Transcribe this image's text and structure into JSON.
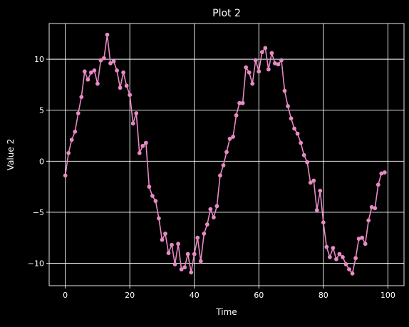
{
  "chart_data": {
    "type": "line",
    "title": "Plot 2",
    "xlabel": "Time",
    "ylabel": "Value 2",
    "xlim": [
      -5,
      105
    ],
    "ylim": [
      -12.2,
      13.5
    ],
    "xticks": [
      0,
      20,
      40,
      60,
      80,
      100
    ],
    "yticks": [
      -10,
      -5,
      0,
      5,
      10
    ],
    "xtick_labels": [
      "0",
      "20",
      "40",
      "60",
      "80",
      "100"
    ],
    "ytick_labels": [
      "−10",
      "−5",
      "0",
      "5",
      "10"
    ],
    "grid": true,
    "colors": {
      "background": "#000000",
      "series": "#e78ac3",
      "grid": "#ffffff",
      "text": "#ffffff"
    },
    "series": [
      {
        "marker": "circle",
        "x": [
          0,
          1,
          2,
          3,
          4,
          5,
          6,
          7,
          8,
          9,
          10,
          11,
          12,
          13,
          14,
          15,
          16,
          17,
          18,
          19,
          20,
          21,
          22,
          23,
          24,
          25,
          26,
          27,
          28,
          29,
          30,
          31,
          32,
          33,
          34,
          35,
          36,
          37,
          38,
          39,
          40,
          41,
          42,
          43,
          44,
          45,
          46,
          47,
          48,
          49,
          50,
          51,
          52,
          53,
          54,
          55,
          56,
          57,
          58,
          59,
          60,
          61,
          62,
          63,
          64,
          65,
          66,
          67,
          68,
          69,
          70,
          71,
          72,
          73,
          74,
          75,
          76,
          77,
          78,
          79,
          80,
          81,
          82,
          83,
          84,
          85,
          86,
          87,
          88,
          89,
          90,
          91,
          92,
          93,
          94,
          95,
          96,
          97,
          98,
          99
        ],
        "values": [
          -1.4,
          0.8,
          2.1,
          2.9,
          4.7,
          6.3,
          8.8,
          8.0,
          8.7,
          8.9,
          7.6,
          9.9,
          10.1,
          12.4,
          9.6,
          9.8,
          8.9,
          7.2,
          8.7,
          7.4,
          6.5,
          3.7,
          4.7,
          0.8,
          1.5,
          1.8,
          -2.5,
          -3.4,
          -3.9,
          -5.6,
          -7.7,
          -7.1,
          -9.0,
          -8.2,
          -10.1,
          -8.1,
          -10.6,
          -10.4,
          -9.1,
          -10.9,
          -9.1,
          -7.5,
          -9.8,
          -7.1,
          -6.2,
          -4.7,
          -5.5,
          -4.4,
          -1.4,
          -0.4,
          0.9,
          2.2,
          2.4,
          4.5,
          5.7,
          5.7,
          9.2,
          8.7,
          7.6,
          9.9,
          8.8,
          10.7,
          11.1,
          9.0,
          10.6,
          9.6,
          9.5,
          9.9,
          6.9,
          5.4,
          4.2,
          3.2,
          2.7,
          1.8,
          0.6,
          -0.1,
          -2.1,
          -1.9,
          -4.8,
          -2.9,
          -6.0,
          -8.4,
          -9.4,
          -8.5,
          -9.6,
          -9.1,
          -9.4,
          -10.1,
          -10.6,
          -11.0,
          -9.5,
          -7.6,
          -7.5,
          -8.1,
          -5.8,
          -4.5,
          -4.6,
          -2.3,
          -1.2,
          -1.1
        ]
      }
    ]
  }
}
